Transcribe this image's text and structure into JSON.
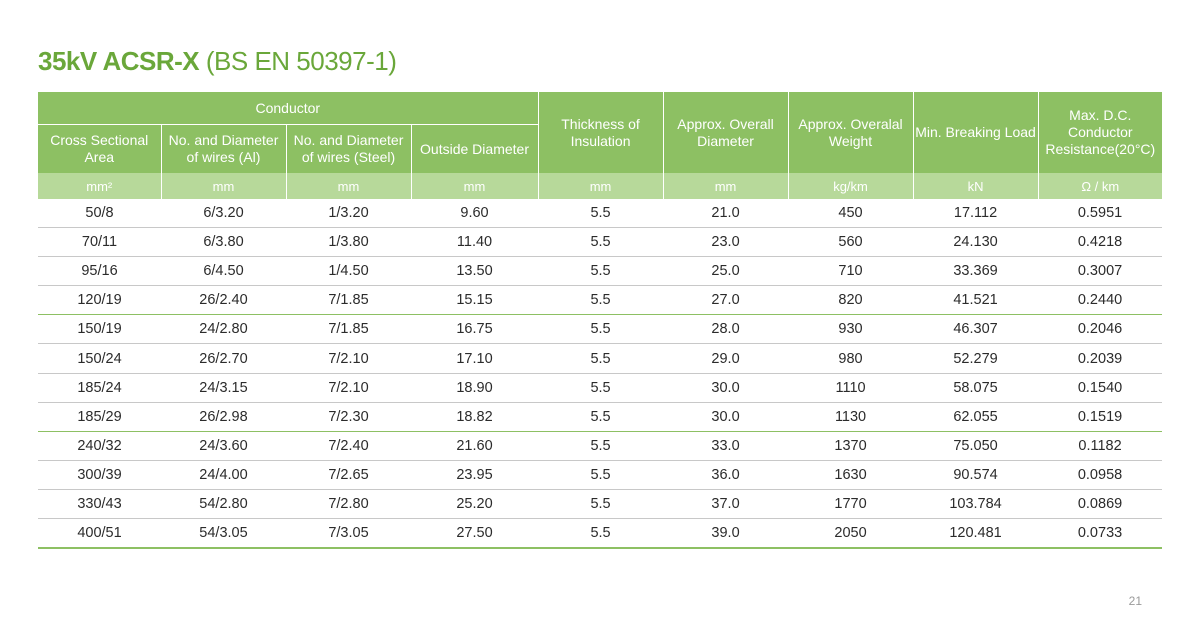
{
  "title": {
    "bold": "35kV ACSR-X",
    "light": "(BS EN 50397-1)"
  },
  "header": {
    "conductor_group": "Conductor",
    "columns": [
      "Cross Sectional Area",
      "No. and Diameter of wires (Al)",
      "No. and Diameter of wires (Steel)",
      "Outside Diameter",
      "Thickness of Insulation",
      "Approx. Overall Diameter",
      "Approx. Overalal Weight",
      "Min. Breaking Load",
      "Max. D.C. Conductor Resistance(20°C)"
    ],
    "units": [
      "mm²",
      "mm",
      "mm",
      "mm",
      "mm",
      "mm",
      "kg/km",
      "kN",
      "Ω / km"
    ]
  },
  "rows": [
    [
      "50/8",
      "6/3.20",
      "1/3.20",
      "9.60",
      "5.5",
      "21.0",
      "450",
      "17.112",
      "0.5951"
    ],
    [
      "70/11",
      "6/3.80",
      "1/3.80",
      "11.40",
      "5.5",
      "23.0",
      "560",
      "24.130",
      "0.4218"
    ],
    [
      "95/16",
      "6/4.50",
      "1/4.50",
      "13.50",
      "5.5",
      "25.0",
      "710",
      "33.369",
      "0.3007"
    ],
    [
      "120/19",
      "26/2.40",
      "7/1.85",
      "15.15",
      "5.5",
      "27.0",
      "820",
      "41.521",
      "0.2440"
    ],
    [
      "150/19",
      "24/2.80",
      "7/1.85",
      "16.75",
      "5.5",
      "28.0",
      "930",
      "46.307",
      "0.2046"
    ],
    [
      "150/24",
      "26/2.70",
      "7/2.10",
      "17.10",
      "5.5",
      "29.0",
      "980",
      "52.279",
      "0.2039"
    ],
    [
      "185/24",
      "24/3.15",
      "7/2.10",
      "18.90",
      "5.5",
      "30.0",
      "1110",
      "58.075",
      "0.1540"
    ],
    [
      "185/29",
      "26/2.98",
      "7/2.30",
      "18.82",
      "5.5",
      "30.0",
      "1130",
      "62.055",
      "0.1519"
    ],
    [
      "240/32",
      "24/3.60",
      "7/2.40",
      "21.60",
      "5.5",
      "33.0",
      "1370",
      "75.050",
      "0.1182"
    ],
    [
      "300/39",
      "24/4.00",
      "7/2.65",
      "23.95",
      "5.5",
      "36.0",
      "1630",
      "90.574",
      "0.0958"
    ],
    [
      "330/43",
      "54/2.80",
      "7/2.80",
      "25.20",
      "5.5",
      "37.0",
      "1770",
      "103.784",
      "0.0869"
    ],
    [
      "400/51",
      "54/3.05",
      "7/3.05",
      "27.50",
      "5.5",
      "39.0",
      "2050",
      "120.481",
      "0.0733"
    ]
  ],
  "page_number": "21"
}
